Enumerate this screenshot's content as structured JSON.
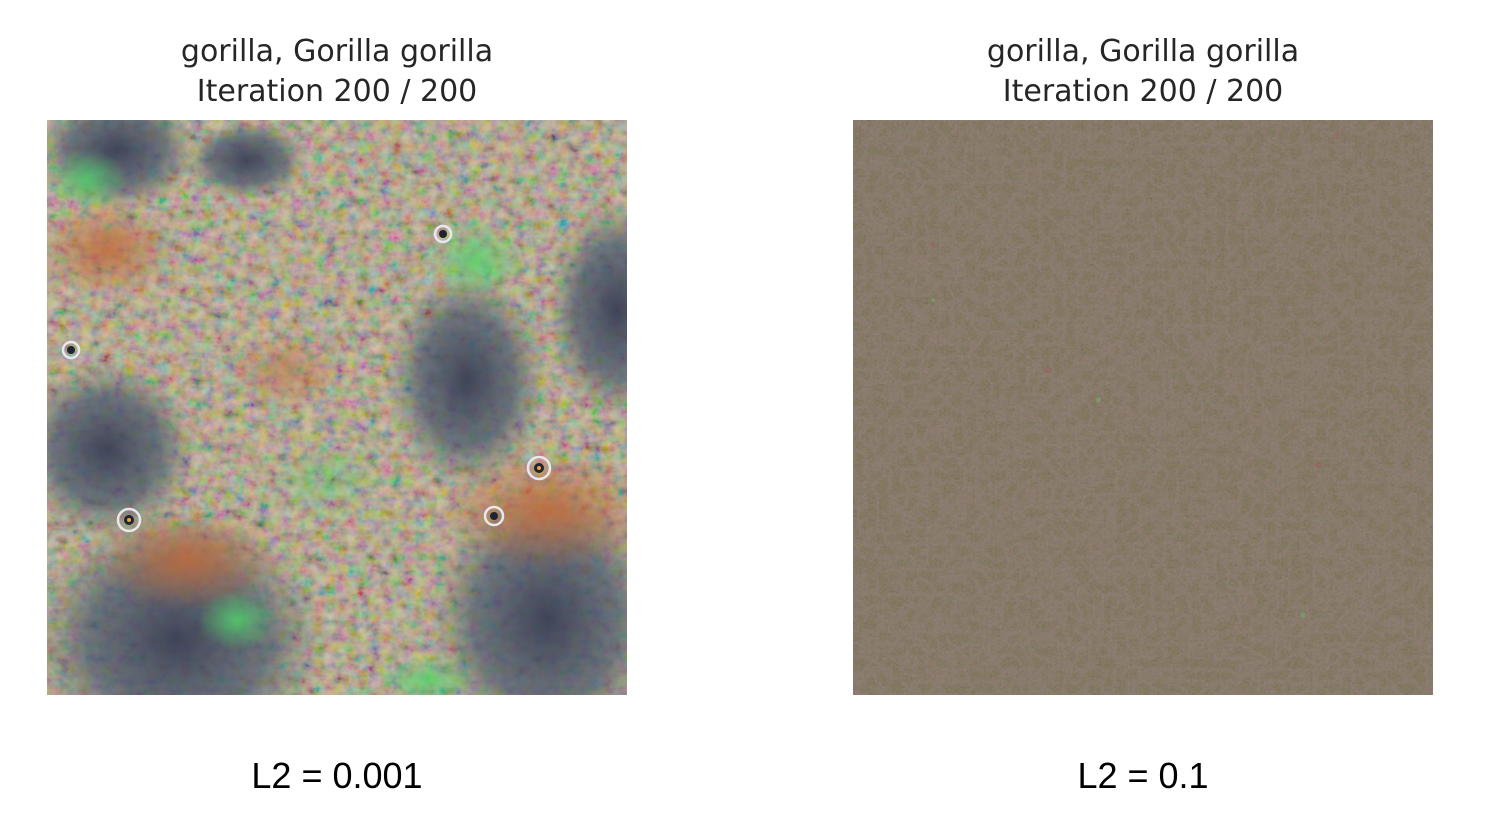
{
  "panels": [
    {
      "title_line1": "gorilla, Gorilla gorilla",
      "title_line2": "Iteration 200 / 200",
      "caption": "L2 = 0.001",
      "image": "class-visualization-gorilla-l2-0.001"
    },
    {
      "title_line1": "gorilla, Gorilla gorilla",
      "title_line2": "Iteration 200 / 200",
      "caption": "L2 = 0.1",
      "image": "class-visualization-gorilla-l2-0.1"
    }
  ],
  "colors": {
    "left_base": "#7a7a5e",
    "right_base": "#7b6e55",
    "title_text": "#262626",
    "caption_text": "#000000"
  }
}
